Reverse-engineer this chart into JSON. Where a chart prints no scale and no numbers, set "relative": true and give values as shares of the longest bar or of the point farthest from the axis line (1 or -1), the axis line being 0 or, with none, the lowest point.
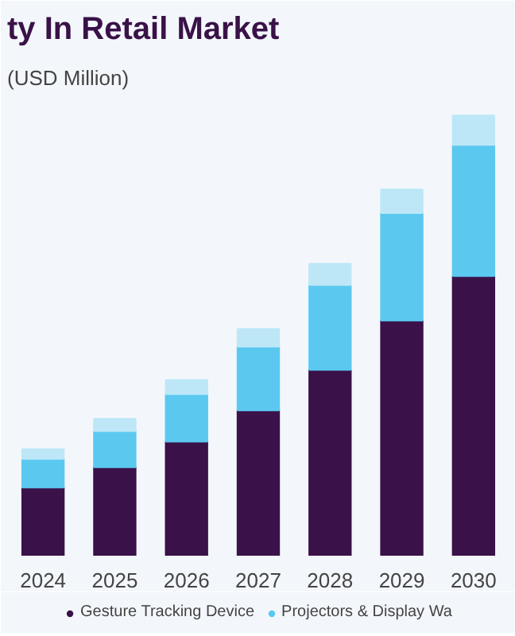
{
  "chart_data": {
    "type": "bar",
    "title": "ty In Retail Market",
    "subtitle": "(USD Million)",
    "relative": true,
    "stacked": true,
    "legend": "bottom",
    "grid": false,
    "categories": [
      "2024",
      "2025",
      "2026",
      "2027",
      "2028",
      "2029",
      "2030"
    ],
    "series": [
      {
        "name": "Gesture Tracking Device",
        "color": "#3a1148",
        "values": [
          0.155,
          0.201,
          0.259,
          0.33,
          0.422,
          0.534,
          0.635
        ]
      },
      {
        "name": "Projectors & Display Wa",
        "color": "#5bc8f0",
        "values": [
          0.065,
          0.082,
          0.108,
          0.145,
          0.193,
          0.244,
          0.298
        ]
      },
      {
        "color": "#bde7f7",
        "values": [
          0.022,
          0.028,
          0.032,
          0.04,
          0.048,
          0.054,
          0.067
        ]
      }
    ]
  }
}
